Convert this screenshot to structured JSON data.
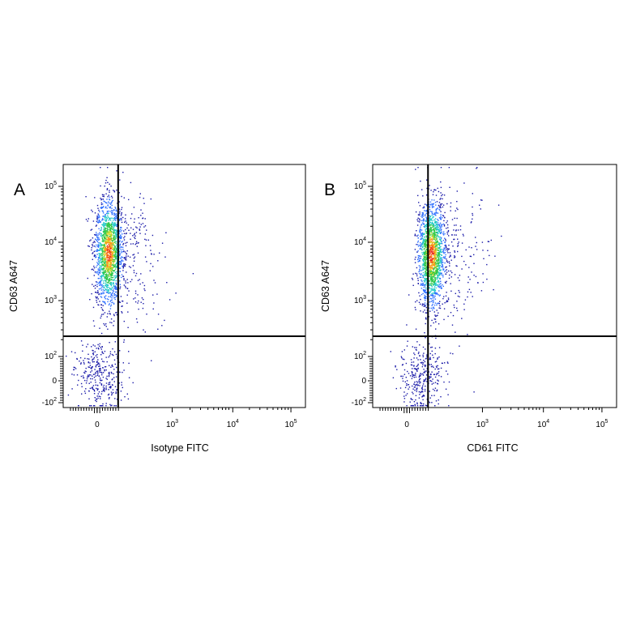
{
  "chart_data": [
    {
      "type": "scatter",
      "panel_label": "A",
      "xlabel": "Isotype FITC",
      "ylabel": "CD63 A647",
      "x_ticks": [
        {
          "base": "0",
          "exp": ""
        },
        {
          "base": "10",
          "exp": "3"
        },
        {
          "base": "10",
          "exp": "4"
        },
        {
          "base": "10",
          "exp": "5"
        }
      ],
      "y_ticks": [
        {
          "base": "-10",
          "exp": "2"
        },
        {
          "base": "0",
          "exp": ""
        },
        {
          "base": "10",
          "exp": "2"
        },
        {
          "base": "10",
          "exp": "3"
        },
        {
          "base": "10",
          "exp": "4"
        },
        {
          "base": "10",
          "exp": "5"
        }
      ],
      "quadrant_gate": {
        "x": 280,
        "y": 230
      },
      "populations": [
        {
          "center_x": 150,
          "center_y": 7000,
          "count": 2200,
          "density": "high"
        }
      ],
      "color_scale": [
        "#1a1aa8",
        "#2f6fff",
        "#22c8c8",
        "#2ec84a",
        "#d9d92a",
        "#ff8c1a",
        "#e8281e"
      ]
    },
    {
      "type": "scatter",
      "panel_label": "B",
      "xlabel": "CD61 FITC",
      "ylabel": "CD63 A647",
      "x_ticks": [
        {
          "base": "0",
          "exp": ""
        },
        {
          "base": "10",
          "exp": "3"
        },
        {
          "base": "10",
          "exp": "4"
        },
        {
          "base": "10",
          "exp": "5"
        }
      ],
      "y_ticks": [
        {
          "base": "-10",
          "exp": "2"
        },
        {
          "base": "0",
          "exp": ""
        },
        {
          "base": "10",
          "exp": "2"
        },
        {
          "base": "10",
          "exp": "3"
        },
        {
          "base": "10",
          "exp": "4"
        },
        {
          "base": "10",
          "exp": "5"
        }
      ],
      "quadrant_gate": {
        "x": 280,
        "y": 230
      },
      "populations": [
        {
          "center_x": 320,
          "center_y": 6500,
          "count": 2200,
          "density": "high"
        }
      ],
      "color_scale": [
        "#1a1aa8",
        "#2f6fff",
        "#22c8c8",
        "#2ec84a",
        "#d9d92a",
        "#ff8c1a",
        "#e8281e"
      ]
    }
  ]
}
